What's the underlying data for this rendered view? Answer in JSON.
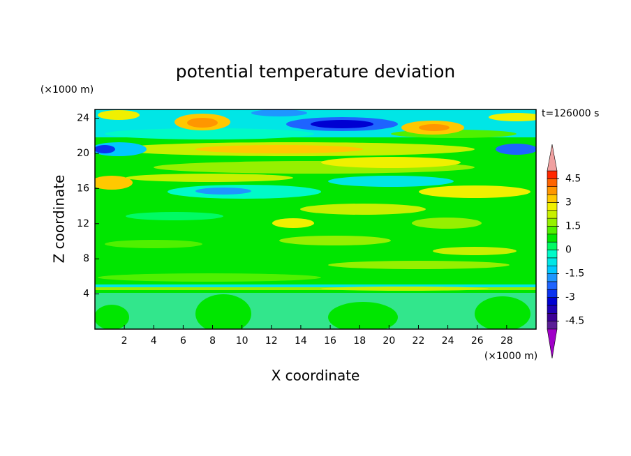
{
  "chart_data": {
    "type": "contour",
    "title": "potential temperature deviation",
    "xlabel": "X coordinate",
    "ylabel": "Z coordinate",
    "xlabel_unit": "(×1000 m)",
    "ylabel_unit": "(×1000 m)",
    "annotation": "t=126000 s",
    "xlim": [
      0,
      30
    ],
    "xticks": [
      2,
      4,
      6,
      8,
      10,
      12,
      14,
      16,
      18,
      20,
      22,
      24,
      26,
      28
    ],
    "ylim": [
      0,
      25
    ],
    "yticks": [
      4,
      8,
      12,
      16,
      20,
      24
    ],
    "colorbar": {
      "levels": [
        -5,
        -4.5,
        -4,
        -3.5,
        -3,
        -2.5,
        -2,
        -1.5,
        -1,
        -0.5,
        0,
        0.5,
        1,
        1.5,
        2,
        2.5,
        3,
        3.5,
        4,
        4.5,
        5
      ],
      "colors": [
        "#5a1e96",
        "#3c0096",
        "#1e00b4",
        "#0000d2",
        "#0a32f0",
        "#1e64ff",
        "#1e96ff",
        "#00c8ff",
        "#00e6e6",
        "#00fac8",
        "#00fa64",
        "#00e600",
        "#50f000",
        "#96f000",
        "#c8f000",
        "#f0f000",
        "#ffc800",
        "#ff9600",
        "#ff6400",
        "#ff2800"
      ],
      "under_color": "#a000c8",
      "over_color": "#f0a0a0",
      "ticks": [
        -4.5,
        -3,
        -1.5,
        0,
        1.5,
        3,
        4.5
      ]
    }
  }
}
